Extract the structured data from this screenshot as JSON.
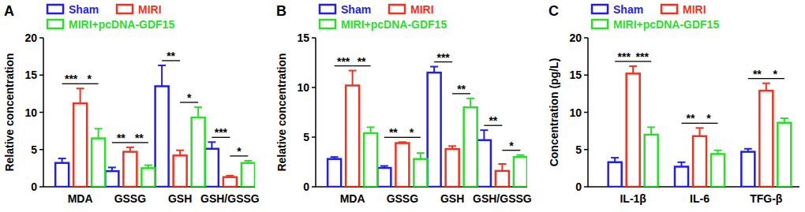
{
  "chart_data": [
    {
      "type": "bar",
      "title": "A",
      "y_label": "Relative concentration",
      "categories": [
        "MDA",
        "GSSG",
        "GSH",
        "GSH/GSSG"
      ],
      "ylim": [
        0,
        20
      ],
      "yticks": [
        0,
        5,
        10,
        15,
        20
      ],
      "grid": false,
      "legend": "top-left",
      "series": [
        {
          "name": "Sham",
          "color": "#1f1fe6",
          "values": [
            3.2,
            2.1,
            13.5,
            5.1
          ],
          "errors": [
            0.6,
            0.5,
            2.8,
            0.9
          ]
        },
        {
          "name": "MIRI",
          "color": "#f0321e",
          "values": [
            11.2,
            4.7,
            4.2,
            1.3
          ],
          "errors": [
            2.0,
            0.6,
            0.7,
            0.2
          ]
        },
        {
          "name": "MIRI+pcDNA-GDF15",
          "color": "#2ddc2d",
          "values": [
            6.5,
            2.5,
            9.3,
            3.2
          ],
          "errors": [
            1.3,
            0.4,
            1.4,
            0.3
          ]
        }
      ],
      "annotations": [
        {
          "category": "MDA",
          "groups": [
            "Sham",
            "MIRI"
          ],
          "label": "***"
        },
        {
          "category": "MDA",
          "groups": [
            "MIRI",
            "MIRI+pcDNA-GDF15"
          ],
          "label": "*"
        },
        {
          "category": "GSSG",
          "groups": [
            "Sham",
            "MIRI"
          ],
          "label": "**"
        },
        {
          "category": "GSSG",
          "groups": [
            "MIRI",
            "MIRI+pcDNA-GDF15"
          ],
          "label": "**"
        },
        {
          "category": "GSH",
          "groups": [
            "Sham",
            "MIRI"
          ],
          "label": "**"
        },
        {
          "category": "GSH",
          "groups": [
            "MIRI",
            "MIRI+pcDNA-GDF15"
          ],
          "label": "*"
        },
        {
          "category": "GSH/GSSG",
          "groups": [
            "Sham",
            "MIRI"
          ],
          "label": "***"
        },
        {
          "category": "GSH/GSSG",
          "groups": [
            "MIRI",
            "MIRI+pcDNA-GDF15"
          ],
          "label": "*"
        }
      ]
    },
    {
      "type": "bar",
      "title": "B",
      "y_label": "Relative concentration",
      "categories": [
        "MDA",
        "GSSG",
        "GSH",
        "GSH/GSSG"
      ],
      "ylim": [
        0,
        15
      ],
      "yticks": [
        0,
        5,
        10,
        15
      ],
      "grid": false,
      "legend": "top-left",
      "series": [
        {
          "name": "Sham",
          "color": "#1f1fe6",
          "values": [
            2.8,
            1.9,
            11.5,
            4.7
          ],
          "errors": [
            0.2,
            0.2,
            0.6,
            1.0
          ]
        },
        {
          "name": "MIRI",
          "color": "#f0321e",
          "values": [
            10.2,
            4.4,
            3.8,
            1.6
          ],
          "errors": [
            1.5,
            0.1,
            0.3,
            0.7
          ]
        },
        {
          "name": "MIRI+pcDNA-GDF15",
          "color": "#2ddc2d",
          "values": [
            5.4,
            2.8,
            8.0,
            3.0
          ],
          "errors": [
            0.6,
            0.6,
            0.9,
            0.2
          ]
        }
      ],
      "annotations": [
        {
          "category": "MDA",
          "groups": [
            "Sham",
            "MIRI"
          ],
          "label": "***"
        },
        {
          "category": "MDA",
          "groups": [
            "MIRI",
            "MIRI+pcDNA-GDF15"
          ],
          "label": "**"
        },
        {
          "category": "GSSG",
          "groups": [
            "Sham",
            "MIRI"
          ],
          "label": "**"
        },
        {
          "category": "GSSG",
          "groups": [
            "MIRI",
            "MIRI+pcDNA-GDF15"
          ],
          "label": "*"
        },
        {
          "category": "GSH",
          "groups": [
            "Sham",
            "MIRI"
          ],
          "label": "***"
        },
        {
          "category": "GSH",
          "groups": [
            "MIRI",
            "MIRI+pcDNA-GDF15"
          ],
          "label": "**"
        },
        {
          "category": "GSH/GSSG",
          "groups": [
            "Sham",
            "MIRI"
          ],
          "label": "**"
        },
        {
          "category": "GSH/GSSG",
          "groups": [
            "MIRI",
            "MIRI+pcDNA-GDF15"
          ],
          "label": "*"
        }
      ]
    },
    {
      "type": "bar",
      "title": "C",
      "y_label": "Concentration (pg/L)",
      "categories": [
        "IL-1β",
        "IL-6",
        "TFG-β"
      ],
      "ylim": [
        0,
        20
      ],
      "yticks": [
        0,
        5,
        10,
        15,
        20
      ],
      "grid": false,
      "legend": "top-left",
      "series": [
        {
          "name": "Sham",
          "color": "#1f1fe6",
          "values": [
            3.3,
            2.7,
            4.7
          ],
          "errors": [
            0.6,
            0.6,
            0.4
          ]
        },
        {
          "name": "MIRI",
          "color": "#f0321e",
          "values": [
            15.2,
            6.8,
            12.9
          ],
          "errors": [
            1.0,
            1.1,
            1.0
          ]
        },
        {
          "name": "MIRI+pcDNA-GDF15",
          "color": "#2ddc2d",
          "values": [
            7.0,
            4.4,
            8.6
          ],
          "errors": [
            1.0,
            0.5,
            0.6
          ]
        }
      ],
      "annotations": [
        {
          "category": "IL-1β",
          "groups": [
            "Sham",
            "MIRI"
          ],
          "label": "***"
        },
        {
          "category": "IL-1β",
          "groups": [
            "MIRI",
            "MIRI+pcDNA-GDF15"
          ],
          "label": "***"
        },
        {
          "category": "IL-6",
          "groups": [
            "Sham",
            "MIRI"
          ],
          "label": "**"
        },
        {
          "category": "IL-6",
          "groups": [
            "MIRI",
            "MIRI+pcDNA-GDF15"
          ],
          "label": "*"
        },
        {
          "category": "TFG-β",
          "groups": [
            "Sham",
            "MIRI"
          ],
          "label": "**"
        },
        {
          "category": "TFG-β",
          "groups": [
            "MIRI",
            "MIRI+pcDNA-GDF15"
          ],
          "label": "*"
        }
      ]
    }
  ]
}
